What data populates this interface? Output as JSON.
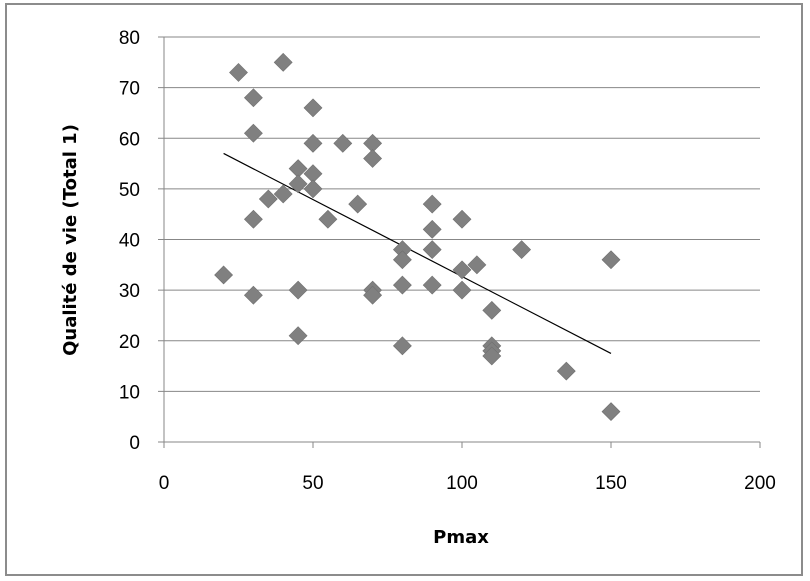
{
  "chart_data": {
    "type": "scatter",
    "title": "",
    "xlabel": "Pmax",
    "ylabel": "Qualité de vie (Total 1)",
    "xlim": [
      0,
      200
    ],
    "ylim": [
      0,
      80
    ],
    "x_ticks": [
      0,
      50,
      100,
      150,
      200
    ],
    "y_ticks": [
      0,
      10,
      20,
      30,
      40,
      50,
      60,
      70,
      80
    ],
    "grid": "horizontal",
    "legend": "none",
    "marker": "diamond",
    "marker_color": "#808080",
    "trendline": {
      "type": "linear",
      "x_start": 20,
      "y_start": 57,
      "x_end": 150,
      "y_end": 17.5,
      "color": "#000000"
    },
    "series": [
      {
        "points": [
          [
            20,
            33
          ],
          [
            25,
            73
          ],
          [
            30,
            68
          ],
          [
            30,
            61
          ],
          [
            30,
            44
          ],
          [
            30,
            29
          ],
          [
            35,
            48
          ],
          [
            40,
            75
          ],
          [
            40,
            49
          ],
          [
            45,
            54
          ],
          [
            45,
            51
          ],
          [
            45,
            30
          ],
          [
            45,
            21
          ],
          [
            50,
            66
          ],
          [
            50,
            59
          ],
          [
            50,
            53
          ],
          [
            50,
            50
          ],
          [
            55,
            44
          ],
          [
            60,
            59
          ],
          [
            65,
            47
          ],
          [
            70,
            59
          ],
          [
            70,
            56
          ],
          [
            70,
            30
          ],
          [
            70,
            29
          ],
          [
            80,
            38
          ],
          [
            80,
            36
          ],
          [
            80,
            31
          ],
          [
            80,
            19
          ],
          [
            90,
            47
          ],
          [
            90,
            42
          ],
          [
            90,
            38
          ],
          [
            90,
            31
          ],
          [
            100,
            44
          ],
          [
            100,
            34
          ],
          [
            100,
            30
          ],
          [
            105,
            35
          ],
          [
            110,
            26
          ],
          [
            110,
            19
          ],
          [
            110,
            18
          ],
          [
            110,
            17
          ],
          [
            120,
            38
          ],
          [
            135,
            14
          ],
          [
            150,
            36
          ],
          [
            150,
            6
          ]
        ]
      }
    ]
  }
}
